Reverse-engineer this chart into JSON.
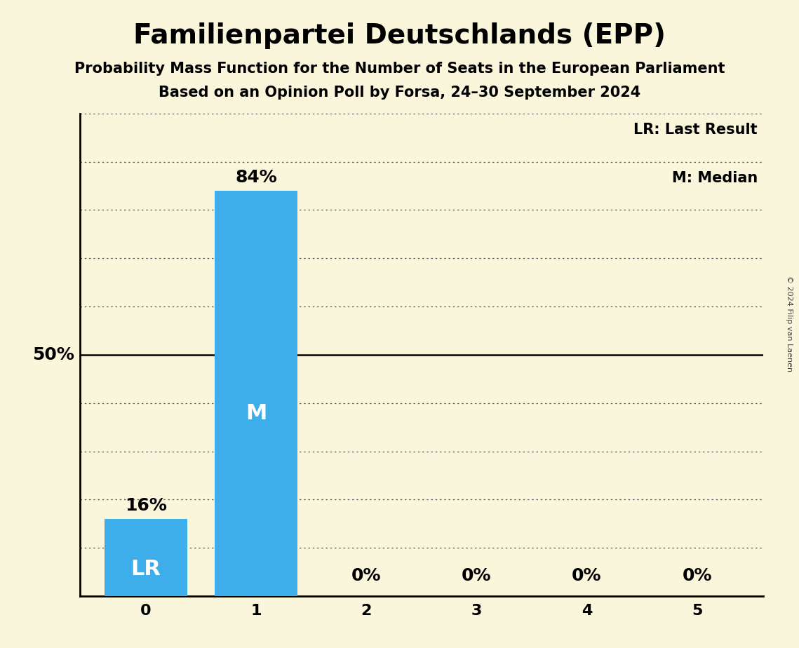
{
  "title": "Familienpartei Deutschlands (EPP)",
  "subtitle1": "Probability Mass Function for the Number of Seats in the European Parliament",
  "subtitle2": "Based on an Opinion Poll by Forsa, 24–30 September 2024",
  "copyright": "© 2024 Filip van Laenen",
  "categories": [
    0,
    1,
    2,
    3,
    4,
    5
  ],
  "values": [
    16,
    84,
    0,
    0,
    0,
    0
  ],
  "bar_color": "#3daee9",
  "background_color": "#FAF6DC",
  "label_color_inside": "#FFFFFF",
  "label_color_outside": "#000000",
  "lr_seat": 0,
  "median_seat": 1,
  "ylabel_50": "50%",
  "legend_lr": "LR: Last Result",
  "legend_m": "M: Median",
  "ylim": [
    0,
    100
  ],
  "dotted_yticks": [
    10,
    20,
    30,
    40,
    60,
    70,
    80,
    90,
    100
  ],
  "solid_ytick": 50,
  "title_fontsize": 28,
  "subtitle_fontsize": 15,
  "axis_tick_fontsize": 16,
  "bar_label_fontsize": 18,
  "inside_label_fontsize": 22,
  "legend_fontsize": 15,
  "ylabel_fontsize": 18,
  "copyright_fontsize": 8
}
